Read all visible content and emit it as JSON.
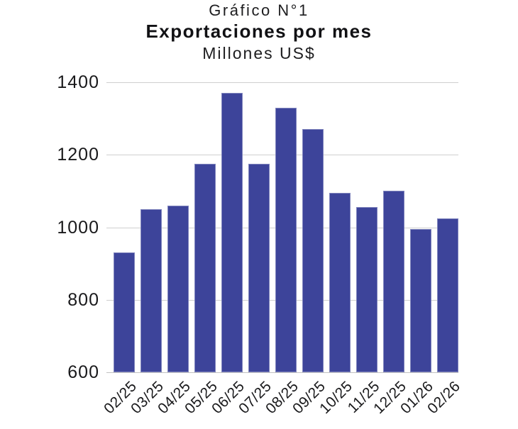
{
  "chart_data": {
    "type": "bar",
    "title": "Gráfico N°1",
    "subtitle": "Exportaciones por mes",
    "units": "Millones US$",
    "categories": [
      "02/25",
      "03/25",
      "04/25",
      "05/25",
      "06/25",
      "07/25",
      "08/25",
      "09/25",
      "10/25",
      "11/25",
      "12/25",
      "01/26",
      "02/26"
    ],
    "values": [
      930,
      1050,
      1060,
      1175,
      1370,
      1175,
      1330,
      1270,
      1095,
      1055,
      1100,
      995,
      1025
    ],
    "xlabel": "",
    "ylabel": "",
    "ylim": [
      600,
      1400
    ],
    "yticks": [
      600,
      800,
      1000,
      1200,
      1400
    ],
    "grid": true,
    "legend": "none",
    "bar_color": "#3D449A",
    "gridline_color": "#CFCFCF",
    "text_color": "#19191B",
    "background": "#FFFFFF",
    "x_tick_rotation_deg": 45
  }
}
